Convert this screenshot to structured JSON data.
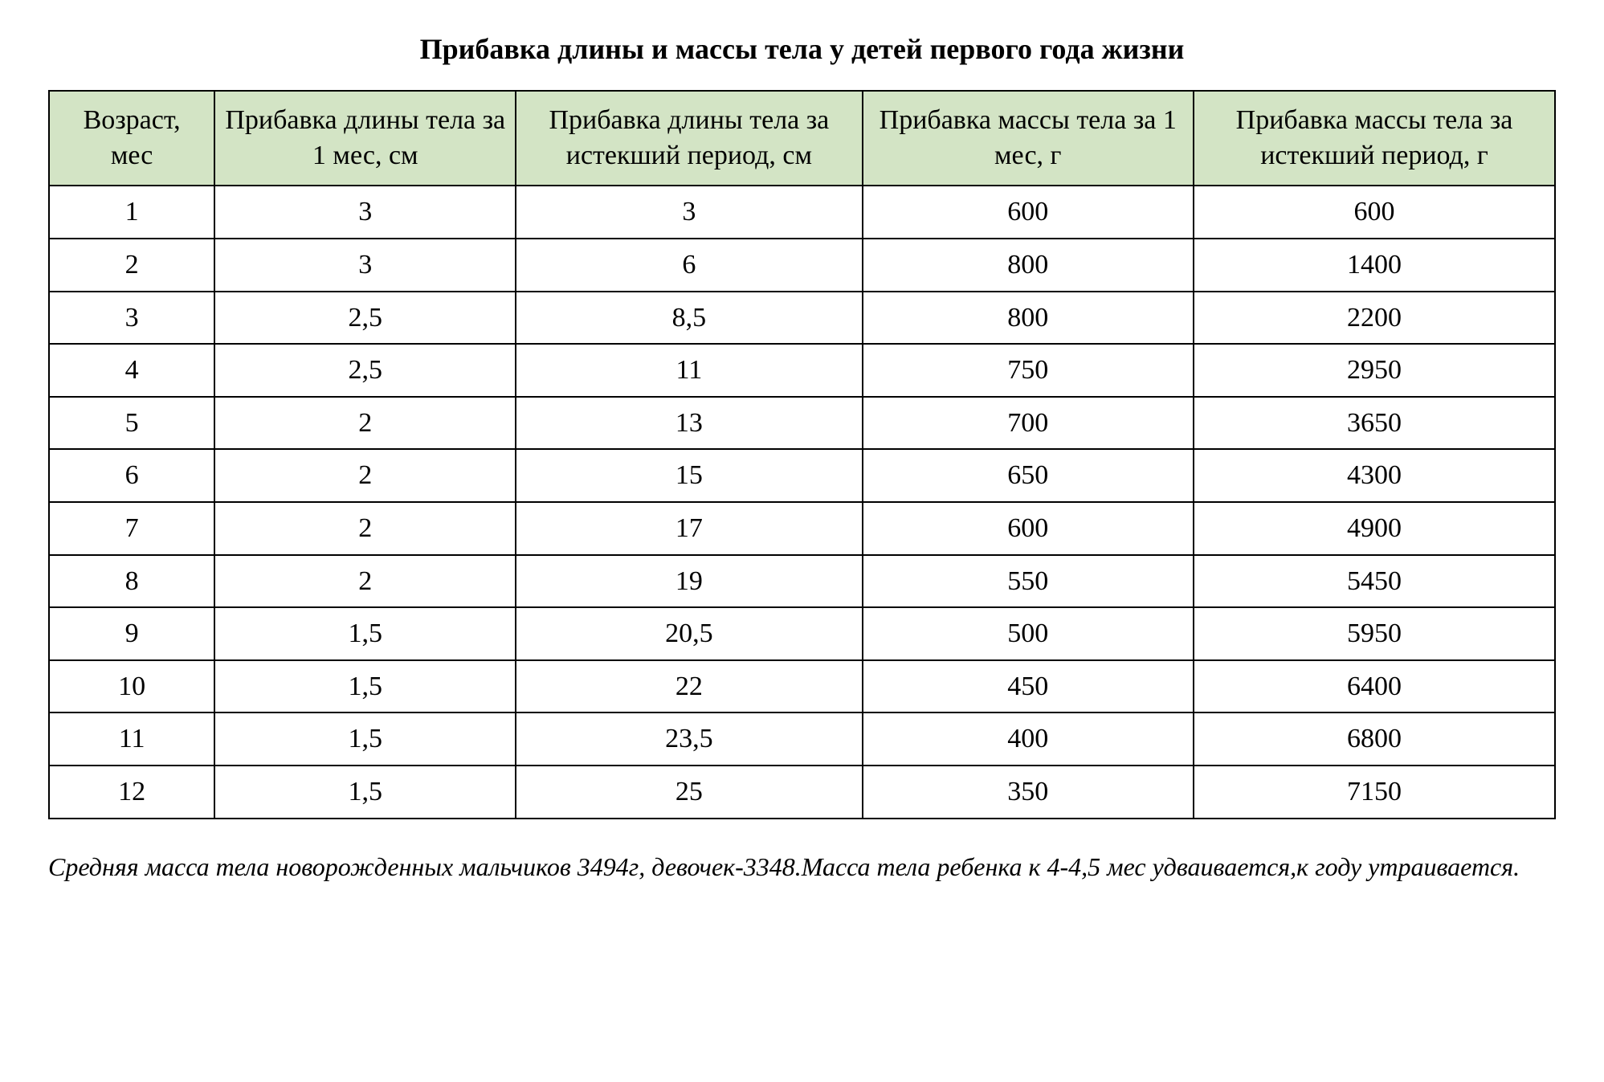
{
  "title": "Прибавка длины и массы тела у детей первого года жизни",
  "table": {
    "type": "table",
    "header_bg": "#d3e4c5",
    "border_color": "#000000",
    "font_family": "Times New Roman",
    "header_fontsize": 34,
    "cell_fontsize": 34,
    "columns": [
      "Возраст, мес",
      "Прибавка длины тела за 1 мес, см",
      "Прибавка длины тела за истекший период, см",
      "Прибавка массы тела за 1 мес, г",
      "Прибавка массы тела за истекший период, г"
    ],
    "column_widths_pct": [
      11,
      20,
      23,
      22,
      24
    ],
    "rows": [
      [
        "1",
        "3",
        "3",
        "600",
        "600"
      ],
      [
        "2",
        "3",
        "6",
        "800",
        "1400"
      ],
      [
        "3",
        "2,5",
        "8,5",
        "800",
        "2200"
      ],
      [
        "4",
        "2,5",
        "11",
        "750",
        "2950"
      ],
      [
        "5",
        "2",
        "13",
        "700",
        "3650"
      ],
      [
        "6",
        "2",
        "15",
        "650",
        "4300"
      ],
      [
        "7",
        "2",
        "17",
        "600",
        "4900"
      ],
      [
        "8",
        "2",
        "19",
        "550",
        "5450"
      ],
      [
        "9",
        "1,5",
        "20,5",
        "500",
        "5950"
      ],
      [
        "10",
        "1,5",
        "22",
        "450",
        "6400"
      ],
      [
        "11",
        "1,5",
        "23,5",
        "400",
        "6800"
      ],
      [
        "12",
        "1,5",
        "25",
        "350",
        "7150"
      ]
    ]
  },
  "footnote": "Средняя масса тела новорожденных мальчиков 3494г, девочек-3348.Масса тела ребенка к 4-4,5 мес удваивается,к году утраивается."
}
